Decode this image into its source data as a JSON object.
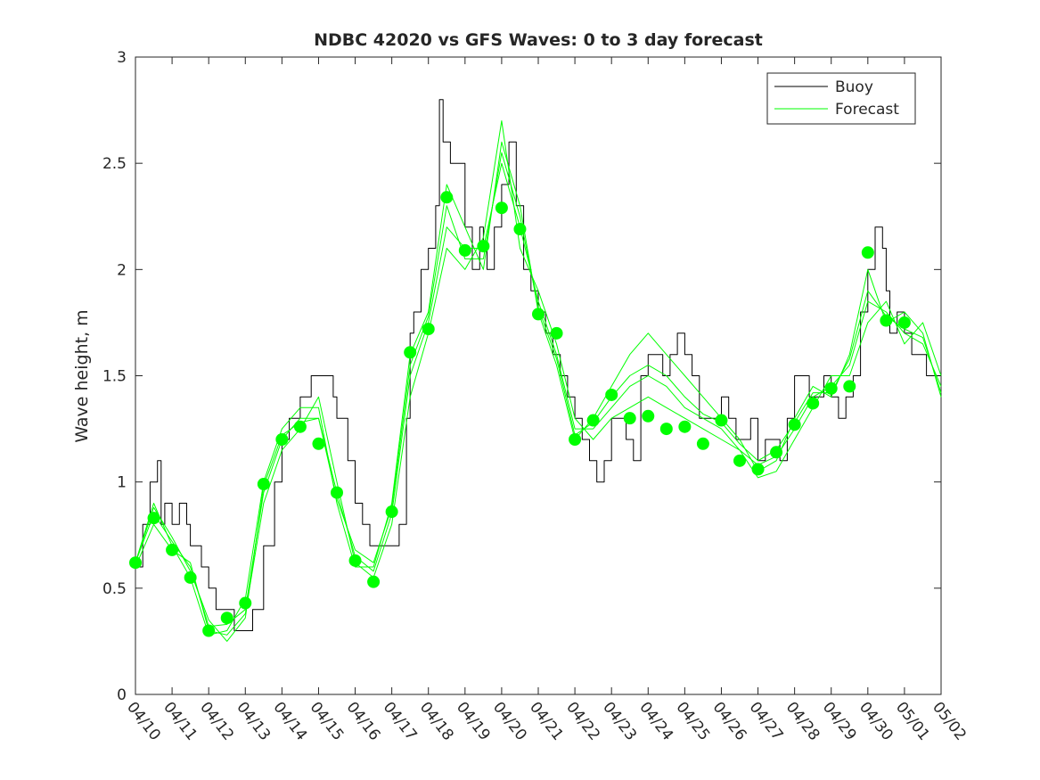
{
  "chart_data": {
    "type": "line",
    "title": "NDBC 42020 vs GFS Waves: 0 to 3 day forecast",
    "xlabel": "",
    "ylabel": "Wave height, m",
    "xlim": [
      "04/10",
      "05/02"
    ],
    "ylim": [
      0,
      3
    ],
    "x_ticks": [
      "04/10",
      "04/11",
      "04/12",
      "04/13",
      "04/14",
      "04/15",
      "04/16",
      "04/17",
      "04/18",
      "04/19",
      "04/20",
      "04/21",
      "04/22",
      "04/23",
      "04/24",
      "04/25",
      "04/26",
      "04/27",
      "04/28",
      "04/29",
      "04/30",
      "05/01",
      "05/02"
    ],
    "y_ticks": [
      "0",
      "0.5",
      "1",
      "1.5",
      "2",
      "2.5",
      "3"
    ],
    "grid": false,
    "legend": {
      "placement": "top-right",
      "entries": [
        "Buoy",
        "Forecast"
      ]
    },
    "colors": {
      "buoy": "#000000",
      "forecast": "#00ff00",
      "axis": "#262626"
    },
    "series": [
      {
        "name": "Buoy",
        "x_days_from_start": [
          0,
          0.2,
          0.4,
          0.5,
          0.6,
          0.7,
          0.8,
          0.9,
          1.0,
          1.2,
          1.4,
          1.5,
          1.6,
          1.8,
          2.0,
          2.2,
          2.4,
          2.5,
          2.7,
          2.8,
          3.0,
          3.2,
          3.5,
          3.8,
          4.0,
          4.2,
          4.4,
          4.5,
          4.7,
          4.8,
          5.0,
          5.2,
          5.4,
          5.5,
          5.6,
          5.8,
          6.0,
          6.2,
          6.4,
          6.6,
          6.8,
          7.0,
          7.2,
          7.4,
          7.5,
          7.6,
          7.8,
          8.0,
          8.2,
          8.3,
          8.4,
          8.5,
          8.6,
          8.8,
          9.0,
          9.2,
          9.4,
          9.5,
          9.6,
          9.8,
          10.0,
          10.2,
          10.4,
          10.6,
          10.8,
          11.0,
          11.2,
          11.4,
          11.6,
          11.8,
          12.0,
          12.2,
          12.4,
          12.6,
          12.8,
          13.0,
          13.2,
          13.4,
          13.6,
          13.8,
          14.0,
          14.2,
          14.4,
          14.6,
          14.8,
          15.0,
          15.2,
          15.4,
          15.6,
          15.8,
          16.0,
          16.2,
          16.4,
          16.6,
          16.8,
          17.0,
          17.2,
          17.4,
          17.6,
          17.8,
          18.0,
          18.2,
          18.4,
          18.6,
          18.8,
          19.0,
          19.2,
          19.4,
          19.6,
          19.8,
          20.0,
          20.2,
          20.4,
          20.5,
          20.6,
          20.8,
          21.0,
          21.2,
          21.4,
          21.6,
          21.8,
          22.0
        ],
        "values": [
          0.6,
          0.8,
          1.0,
          1.0,
          1.1,
          0.8,
          0.9,
          0.9,
          0.8,
          0.9,
          0.8,
          0.7,
          0.7,
          0.6,
          0.5,
          0.4,
          0.4,
          0.4,
          0.3,
          0.3,
          0.3,
          0.4,
          0.7,
          1.0,
          1.2,
          1.3,
          1.3,
          1.4,
          1.4,
          1.5,
          1.5,
          1.5,
          1.4,
          1.3,
          1.3,
          1.1,
          0.9,
          0.8,
          0.7,
          0.7,
          0.7,
          0.7,
          0.8,
          1.3,
          1.7,
          1.8,
          2.0,
          2.1,
          2.3,
          2.8,
          2.6,
          2.6,
          2.5,
          2.5,
          2.2,
          2.0,
          2.2,
          2.1,
          2.0,
          2.2,
          2.4,
          2.6,
          2.3,
          2.0,
          1.9,
          1.8,
          1.7,
          1.6,
          1.5,
          1.4,
          1.3,
          1.2,
          1.1,
          1.0,
          1.1,
          1.3,
          1.3,
          1.2,
          1.1,
          1.5,
          1.6,
          1.6,
          1.5,
          1.6,
          1.7,
          1.6,
          1.5,
          1.3,
          1.3,
          1.3,
          1.4,
          1.3,
          1.2,
          1.2,
          1.3,
          1.1,
          1.2,
          1.2,
          1.1,
          1.3,
          1.5,
          1.5,
          1.4,
          1.4,
          1.5,
          1.4,
          1.3,
          1.4,
          1.5,
          1.8,
          2.0,
          2.2,
          2.1,
          1.9,
          1.7,
          1.8,
          1.7,
          1.6,
          1.6,
          1.5,
          1.5,
          1.5
        ]
      },
      {
        "name": "Forecast",
        "x_days_from_start": [
          0,
          0.5,
          1,
          1.5,
          2,
          2.5,
          3,
          3.5,
          4,
          4.5,
          5,
          5.5,
          6,
          6.5,
          7,
          7.5,
          8,
          8.5,
          9,
          9.5,
          10,
          10.5,
          11,
          11.5,
          12,
          12.5,
          13,
          13.5,
          14,
          14.5,
          15,
          15.5,
          16,
          16.5,
          17,
          17.5,
          18,
          18.5,
          19,
          19.5,
          20,
          20.5,
          21,
          21.5,
          22
        ],
        "values": [
          0.62,
          0.85,
          0.72,
          0.6,
          0.32,
          0.33,
          0.4,
          0.95,
          1.2,
          1.3,
          1.3,
          0.95,
          0.65,
          0.58,
          0.85,
          1.5,
          1.75,
          2.2,
          2.1,
          2.1,
          2.5,
          2.2,
          1.85,
          1.6,
          1.25,
          1.25,
          1.35,
          1.45,
          1.5,
          1.45,
          1.35,
          1.3,
          1.25,
          1.15,
          1.08,
          1.12,
          1.25,
          1.4,
          1.45,
          1.55,
          1.85,
          1.8,
          1.7,
          1.65,
          1.45
        ]
      },
      {
        "name": "Forecast",
        "x_days_from_start": [
          0,
          0.5,
          1,
          1.5,
          2,
          2.5,
          3,
          3.5,
          4,
          4.5,
          5,
          5.5,
          6,
          6.5,
          7,
          7.5,
          8,
          8.5,
          9,
          9.5,
          10,
          10.5,
          11,
          11.5,
          12,
          12.5,
          13,
          13.5,
          14,
          14.5,
          15,
          15.5,
          16,
          16.5,
          17,
          17.5,
          18,
          18.5,
          19,
          19.5,
          20,
          20.5,
          21,
          21.5,
          22
        ],
        "values": [
          0.62,
          0.9,
          0.7,
          0.55,
          0.28,
          0.3,
          0.45,
          1.0,
          1.25,
          1.35,
          1.35,
          0.9,
          0.6,
          0.6,
          0.9,
          1.6,
          1.8,
          2.4,
          2.2,
          2.0,
          2.6,
          2.3,
          1.8,
          1.55,
          1.2,
          1.3,
          1.45,
          1.6,
          1.7,
          1.6,
          1.5,
          1.4,
          1.3,
          1.2,
          1.05,
          1.1,
          1.3,
          1.45,
          1.4,
          1.6,
          2.0,
          1.75,
          1.8,
          1.7,
          1.4
        ]
      },
      {
        "name": "Forecast",
        "x_days_from_start": [
          0,
          0.5,
          1,
          1.5,
          2,
          2.5,
          3,
          3.5,
          4,
          4.5,
          5,
          5.5,
          6,
          6.5,
          7,
          7.5,
          8,
          8.5,
          9,
          9.5,
          10,
          10.5,
          11,
          11.5,
          12,
          12.5,
          13,
          13.5,
          14,
          14.5,
          15,
          15.5,
          16,
          16.5,
          17,
          17.5,
          18,
          18.5,
          19,
          19.5,
          20,
          20.5,
          21,
          21.5,
          22
        ],
        "values": [
          0.6,
          0.8,
          0.68,
          0.62,
          0.3,
          0.28,
          0.38,
          0.9,
          1.15,
          1.25,
          1.4,
          1.0,
          0.62,
          0.55,
          0.8,
          1.4,
          1.7,
          2.1,
          2.0,
          2.15,
          2.7,
          2.1,
          1.9,
          1.65,
          1.3,
          1.2,
          1.3,
          1.35,
          1.4,
          1.35,
          1.3,
          1.25,
          1.2,
          1.15,
          1.02,
          1.05,
          1.2,
          1.35,
          1.5,
          1.5,
          1.75,
          1.85,
          1.65,
          1.75,
          1.5
        ]
      },
      {
        "name": "Forecast",
        "x_days_from_start": [
          0,
          0.5,
          1,
          1.5,
          2,
          2.5,
          3,
          3.5,
          4,
          4.5,
          5,
          5.5,
          6,
          6.5,
          7,
          7.5,
          8,
          8.5,
          9,
          9.5,
          10,
          10.5,
          11,
          11.5,
          12,
          12.5,
          13,
          13.5,
          14,
          14.5,
          15,
          15.5,
          16,
          16.5,
          17,
          17.5,
          18,
          18.5,
          19,
          19.5,
          20,
          20.5,
          21,
          21.5,
          22
        ],
        "values": [
          0.62,
          0.88,
          0.74,
          0.58,
          0.35,
          0.25,
          0.36,
          0.98,
          1.22,
          1.28,
          1.3,
          0.92,
          0.68,
          0.62,
          0.88,
          1.55,
          1.78,
          2.3,
          2.05,
          2.05,
          2.55,
          2.25,
          1.82,
          1.58,
          1.22,
          1.28,
          1.4,
          1.5,
          1.55,
          1.5,
          1.4,
          1.32,
          1.28,
          1.18,
          1.1,
          1.15,
          1.28,
          1.42,
          1.42,
          1.58,
          1.9,
          1.78,
          1.72,
          1.68,
          1.42
        ]
      }
    ],
    "markers": {
      "name": "Forecast",
      "x_days_from_start": [
        0,
        0.5,
        1,
        1.5,
        2,
        2.5,
        3,
        3.5,
        4,
        4.5,
        5,
        5.5,
        6,
        6.5,
        7,
        7.5,
        8,
        8.5,
        9,
        9.5,
        10,
        10.5,
        11,
        11.5,
        12,
        12.5,
        13,
        13.5,
        14,
        14.5,
        15,
        15.5,
        16,
        16.5,
        17,
        17.5,
        18,
        18.5,
        19,
        19.5,
        20,
        20.5,
        21
      ],
      "values": [
        0.62,
        0.83,
        0.68,
        0.55,
        0.3,
        0.36,
        0.43,
        0.99,
        1.2,
        1.26,
        1.18,
        0.95,
        0.63,
        0.53,
        0.86,
        1.61,
        1.72,
        2.34,
        2.09,
        2.11,
        2.29,
        2.19,
        1.79,
        1.7,
        1.2,
        1.29,
        1.41,
        1.3,
        1.31,
        1.25,
        1.26,
        1.18,
        1.29,
        1.1,
        1.06,
        1.14,
        1.27,
        1.37,
        1.44,
        1.45,
        2.08,
        1.76,
        1.75
      ]
    }
  }
}
